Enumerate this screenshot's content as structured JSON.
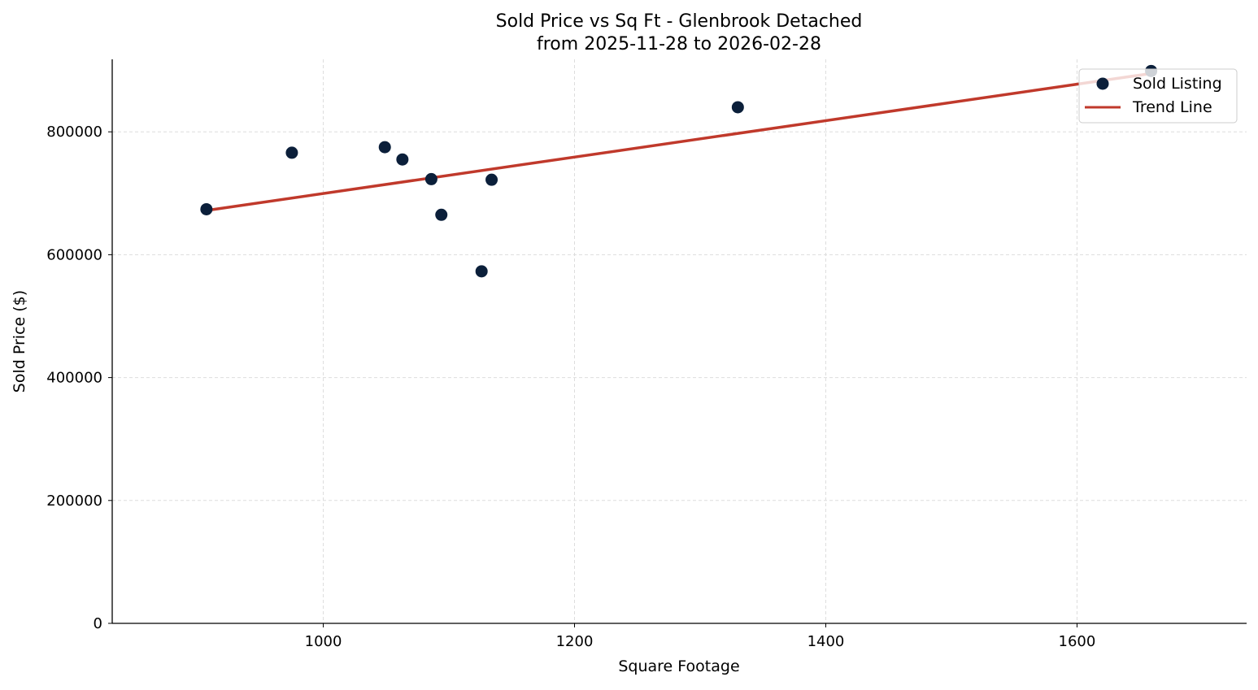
{
  "chart_data": {
    "type": "scatter",
    "title": "Sold Price vs Sq Ft - Glenbrook Detached",
    "subtitle": "from 2025-11-28 to 2026-02-28",
    "xlabel": "Square Footage",
    "ylabel": "Sold Price ($)",
    "xlim": [
      832,
      1735
    ],
    "ylim": [
      0,
      918000
    ],
    "xticks": [
      1000,
      1200,
      1400,
      1600
    ],
    "yticks": [
      0,
      200000,
      400000,
      600000,
      800000
    ],
    "grid": true,
    "legend_position": "top-right",
    "series": [
      {
        "name": "Sold Listing",
        "type": "scatter",
        "color": "#0b1f3a",
        "points": [
          {
            "x": 907,
            "y": 674000
          },
          {
            "x": 975,
            "y": 766000
          },
          {
            "x": 1049,
            "y": 775000
          },
          {
            "x": 1063,
            "y": 755000
          },
          {
            "x": 1086,
            "y": 723000
          },
          {
            "x": 1094,
            "y": 665000
          },
          {
            "x": 1126,
            "y": 573000
          },
          {
            "x": 1134,
            "y": 722000
          },
          {
            "x": 1330,
            "y": 840000
          },
          {
            "x": 1659,
            "y": 899000
          }
        ]
      },
      {
        "name": "Trend Line",
        "type": "line",
        "color": "#c0392b",
        "points": [
          {
            "x": 907,
            "y": 672000
          },
          {
            "x": 1659,
            "y": 895000
          }
        ]
      }
    ]
  }
}
